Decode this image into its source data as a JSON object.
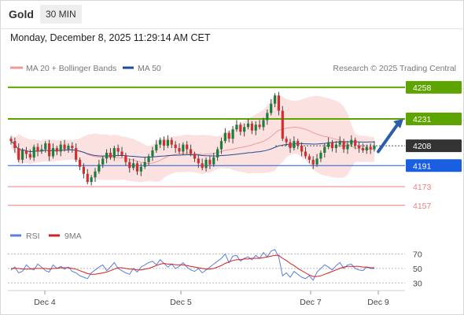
{
  "header": {
    "symbol": "Gold",
    "interval": "30 MIN",
    "timestamp": "Monday, December 8, 2025 11:29:14 AM CET"
  },
  "legend": {
    "bb_label": "MA 20 + Bollinger Bands",
    "ma50_label": "MA 50",
    "credit": "Research © 2025 Trading Central",
    "rsi_label": "RSI",
    "ma9_label": "9MA"
  },
  "colors": {
    "resistance": "#5ea400",
    "support_primary": "#1a5fe0",
    "support_secondary": "#f07f7f",
    "pivot": "#333333",
    "bb_fill": "#fbd7d7",
    "ma20": "#f29a9a",
    "ma50": "#1f4e96",
    "candle_up": "#1a7f3a",
    "candle_down": "#cf2f2f",
    "arrow": "#2a5fa8",
    "rsi": "#5b7fe0",
    "rsi_ma": "#d62020"
  },
  "chart_data": [
    {
      "type": "candlestick",
      "title": "Gold 30 MIN",
      "x_ticks": [
        "Dec 4",
        "Dec 5",
        "Dec 7",
        "Dec 9"
      ],
      "ylim": [
        4140,
        4266
      ],
      "levels": [
        {
          "value": 4258,
          "label": "4258",
          "kind": "resistance"
        },
        {
          "value": 4231,
          "label": "4231",
          "kind": "resistance"
        },
        {
          "value": 4208,
          "label": "4208",
          "kind": "pivot"
        },
        {
          "value": 4191,
          "label": "4191",
          "kind": "support_primary"
        },
        {
          "value": 4173,
          "label": "4173",
          "kind": "support_secondary"
        },
        {
          "value": 4157,
          "label": "4157",
          "kind": "support_secondary"
        }
      ],
      "candles_close": [
        4212,
        4206,
        4196,
        4204,
        4201,
        4198,
        4207,
        4203,
        4205,
        4210,
        4199,
        4206,
        4203,
        4209,
        4205,
        4208,
        4206,
        4196,
        4190,
        4184,
        4177,
        4181,
        4186,
        4192,
        4197,
        4202,
        4198,
        4206,
        4203,
        4200,
        4194,
        4189,
        4193,
        4186,
        4190,
        4194,
        4199,
        4204,
        4209,
        4213,
        4208,
        4213,
        4209,
        4206,
        4203,
        4209,
        4205,
        4201,
        4197,
        4193,
        4189,
        4196,
        4192,
        4198,
        4205,
        4212,
        4219,
        4214,
        4222,
        4226,
        4220,
        4224,
        4227,
        4221,
        4226,
        4224,
        4230,
        4236,
        4244,
        4251,
        4238,
        4214,
        4211,
        4206,
        4212,
        4208,
        4203,
        4199,
        4196,
        4192,
        4197,
        4202,
        4207,
        4211,
        4206,
        4209,
        4212,
        4205,
        4209,
        4213,
        4208,
        4206,
        4204,
        4207,
        4205,
        4208
      ],
      "annotation": "arrow toward 4231"
    },
    {
      "type": "line",
      "title": "RSI",
      "series": [
        {
          "name": "RSI",
          "values": [
            48,
            52,
            44,
            46,
            55,
            50,
            48,
            56,
            52,
            47,
            45,
            55,
            50,
            53,
            49,
            52,
            46,
            44,
            40,
            38,
            36,
            44,
            48,
            52,
            55,
            47,
            52,
            58,
            50,
            47,
            44,
            42,
            50,
            45,
            52,
            55,
            58,
            60,
            55,
            62,
            57,
            52,
            56,
            50,
            53,
            58,
            52,
            48,
            46,
            50,
            44,
            48,
            52,
            56,
            60,
            64,
            70,
            58,
            67,
            68,
            60,
            64,
            66,
            62,
            68,
            64,
            72,
            66,
            74,
            76,
            66,
            40,
            44,
            38,
            46,
            42,
            38,
            36,
            40,
            34,
            45,
            50,
            55,
            52,
            48,
            54,
            58,
            50,
            55,
            56,
            50,
            48,
            47,
            52,
            50,
            50
          ]
        },
        {
          "name": "9MA",
          "values": [
            50,
            50,
            50,
            49,
            49,
            49,
            50,
            50,
            50,
            50,
            49,
            50,
            50,
            51,
            51,
            51,
            50,
            49,
            47,
            45,
            43,
            42,
            42,
            43,
            44,
            45,
            47,
            49,
            51,
            51,
            50,
            49,
            49,
            48,
            48,
            49,
            50,
            52,
            54,
            56,
            57,
            56,
            56,
            55,
            55,
            55,
            54,
            53,
            52,
            51,
            50,
            49,
            49,
            50,
            52,
            54,
            57,
            59,
            61,
            62,
            62,
            63,
            63,
            64,
            64,
            64,
            65,
            66,
            67,
            68,
            68,
            64,
            61,
            57,
            54,
            50,
            47,
            44,
            41,
            39,
            39,
            40,
            42,
            44,
            46,
            48,
            50,
            52,
            53,
            53,
            53,
            53,
            52,
            52,
            51,
            51
          ]
        }
      ],
      "y_ticks": [
        70,
        50,
        30
      ],
      "ylim": [
        25,
        77
      ]
    }
  ]
}
